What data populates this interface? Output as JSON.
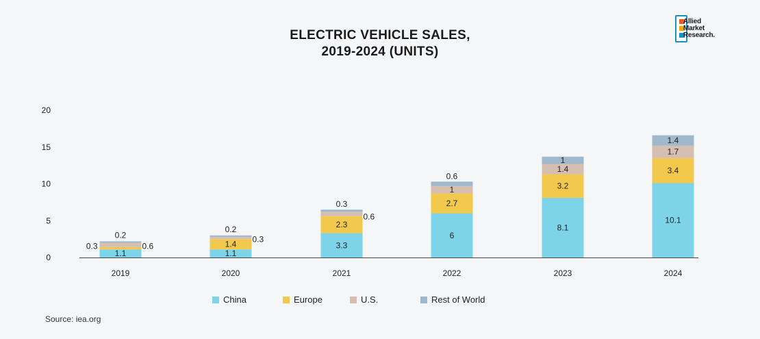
{
  "chart_data": {
    "type": "bar",
    "stacked": true,
    "title_line1": "ELECTRIC VEHICLE SALES,",
    "title_line2": "2019-2024 (UNITS)",
    "categories": [
      "2019",
      "2020",
      "2021",
      "2022",
      "2023",
      "2024"
    ],
    "series": [
      {
        "name": "China",
        "values": [
          1.1,
          1.1,
          3.3,
          6,
          8.1,
          10.1
        ],
        "labels": [
          "1.1",
          "1.1",
          "3.3",
          "6",
          "8.1",
          "10.1"
        ],
        "color": "#7dd3e8"
      },
      {
        "name": "Europe",
        "values": [
          0.3,
          1.4,
          2.3,
          2.7,
          3.2,
          3.4
        ],
        "labels": [
          "0.3",
          "1.4",
          "2.3",
          "2.7",
          "3.2",
          "3.4"
        ],
        "color": "#f2c94c"
      },
      {
        "name": "U.S.",
        "values": [
          0.6,
          0.3,
          0.6,
          1,
          1.4,
          1.7
        ],
        "labels": [
          "0.6",
          "0.3",
          "0.6",
          "1",
          "1.4",
          "1.7"
        ],
        "color": "#d6bfb0"
      },
      {
        "name": "Rest of World",
        "values": [
          0.2,
          0.2,
          0.3,
          0.6,
          1,
          1.4
        ],
        "labels": [
          "0.2",
          "0.2",
          "0.3",
          "0.6",
          "1",
          "1.4"
        ],
        "color": "#9fb8cc"
      }
    ],
    "yticks": [
      "0",
      "5",
      "10",
      "15",
      "20"
    ],
    "ylim": [
      0,
      20
    ],
    "legend_position": "bottom-center",
    "grid": false
  },
  "logo": {
    "line1": "Allied",
    "line2": "Market",
    "line3": "Research."
  },
  "source": "Source: iea.org"
}
